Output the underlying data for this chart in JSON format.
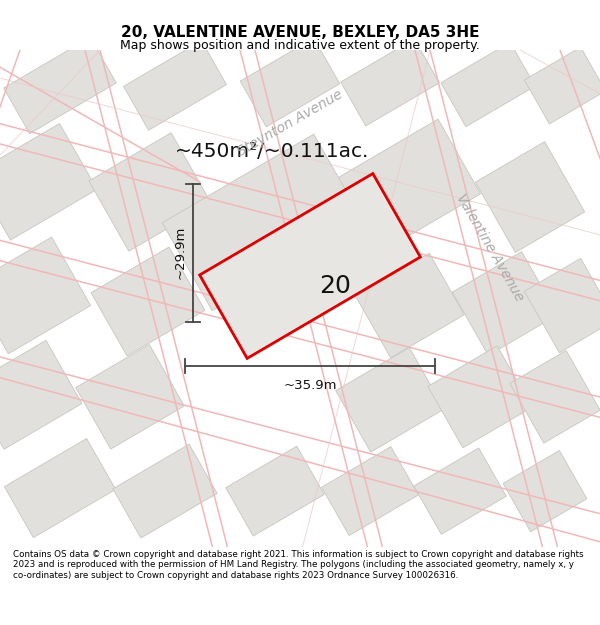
{
  "title": "20, VALENTINE AVENUE, BEXLEY, DA5 3HE",
  "subtitle": "Map shows position and indicative extent of the property.",
  "footer": "Contains OS data © Crown copyright and database right 2021. This information is subject to Crown copyright and database rights 2023 and is reproduced with the permission of HM Land Registry. The polygons (including the associated geometry, namely x, y co-ordinates) are subject to Crown copyright and database rights 2023 Ordnance Survey 100026316.",
  "area_label": "~450m²/~0.111ac.",
  "width_label": "~35.9m",
  "height_label": "~29.9m",
  "plot_number": "20",
  "street1": "Steynton Avenue",
  "street2": "Valentine Avenue",
  "map_bg": "#f8f7f6",
  "plot_outline_color": "#dd0000",
  "plot_fill_color": "#e8e6e3",
  "road_line_color": "#f0b8b8",
  "road_line_color2": "#e8c8c8",
  "block_face_color": "#e2e0dc",
  "block_edge_color": "#c8c6c0",
  "meas_color": "#444444",
  "text_color": "#111111",
  "street_color": "#aaaaaa"
}
